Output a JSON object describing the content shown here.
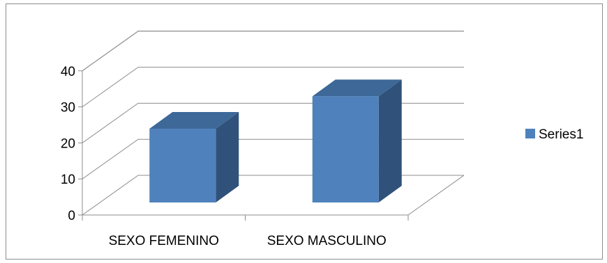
{
  "chart_data": {
    "type": "bar",
    "style": "3d-column",
    "title": "",
    "xlabel": "",
    "ylabel": "",
    "categories": [
      "SEXO FEMENINO",
      "SEXO MASCULINO"
    ],
    "series": [
      {
        "name": "Series1",
        "values": [
          22,
          31
        ]
      }
    ],
    "ylim": [
      0,
      40
    ],
    "yticks": [
      0,
      10,
      20,
      30,
      40
    ],
    "grid": true,
    "legend": "right",
    "colors": {
      "bar_front": "#4f81bd",
      "bar_side": "#30527a",
      "bar_top": "#3d6898",
      "gridline": "#8c8c8c",
      "text": "#000000"
    }
  }
}
